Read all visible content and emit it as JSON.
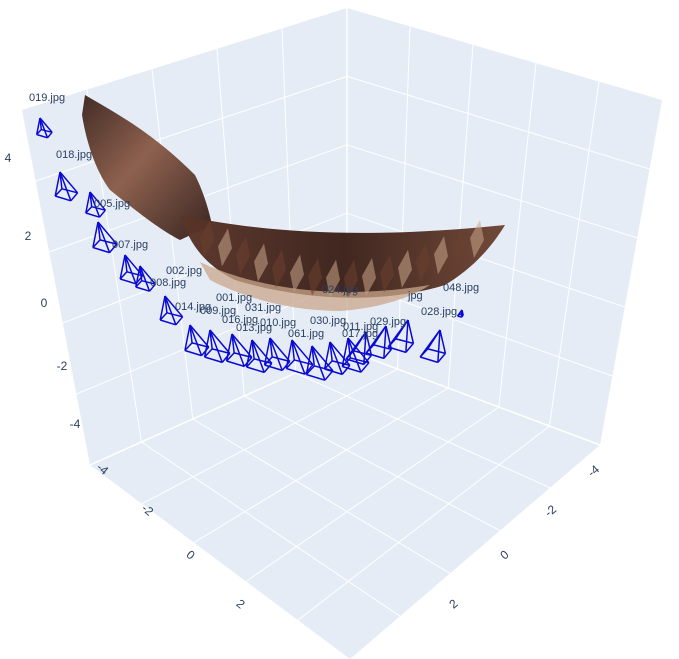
{
  "chart_data": {
    "type": "scatter",
    "subtype": "3d-camera-poses",
    "title": "",
    "colors": {
      "scene_bg": "#e5ecf6",
      "grid": "#ffffff",
      "camera": "#0a0ad2",
      "tick_text": "#2a3f5f",
      "image_dark": "#3a221b",
      "image_mid": "#6b3f30",
      "image_light": "#c9a58a"
    },
    "axes": {
      "x": {
        "range": [
          -5,
          5
        ],
        "ticks": [
          "-4",
          "-2",
          "0",
          "2"
        ]
      },
      "y": {
        "range": [
          -5,
          5
        ],
        "ticks": [
          "-4",
          "-2",
          "0",
          "2"
        ]
      },
      "z": {
        "range": [
          -5,
          5
        ],
        "ticks": [
          "-4",
          "-2",
          "0",
          "2",
          "4"
        ]
      }
    },
    "camera_labels": [
      "019.jpg",
      "018.jpg",
      "005.jpg",
      "007.jpg",
      "002.jpg",
      "008.jpg",
      "001.jpg",
      "014.jpg",
      "009.jpg",
      "031.jpg",
      "016.jpg",
      "013.jpg",
      "010.jpg",
      "030.jpg",
      "061.jpg",
      "011.jpg",
      "017.jpg",
      "029.jpg",
      "028.jpg",
      "048.jpg",
      "024.jpg",
      "jpg"
    ]
  }
}
